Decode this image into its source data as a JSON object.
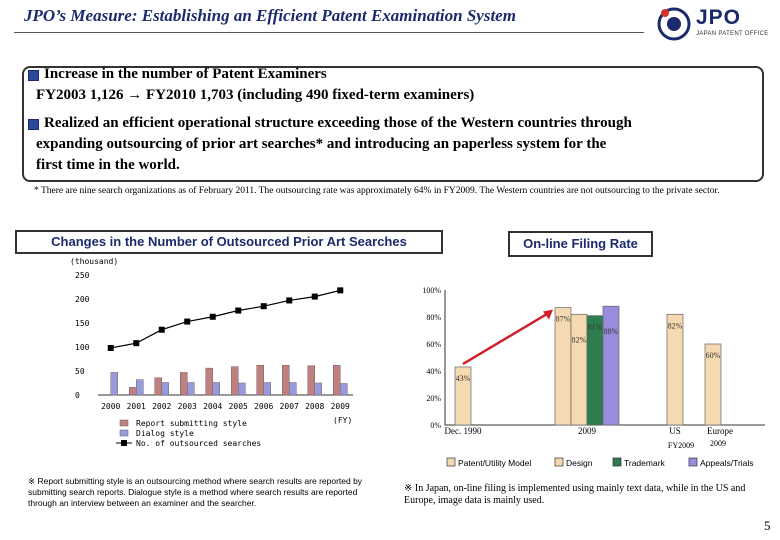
{
  "header": {
    "title": "JPO’s Measure: Establishing an Efficient Patent Examination System",
    "logo_text": "JPO",
    "logo_subtext": "JAPAN PATENT OFFICE"
  },
  "summary": {
    "point1_line1": "Increase in the number of Patent Examiners",
    "point1_line2": "FY2003  1,126  →  FY2010  1,703 (including 490 fixed-term examiners)",
    "point2_line1": "Realized an efficient operational structure exceeding those of the Western countries through",
    "point2_line2": "expanding outsourcing of prior art searches* and introducing an paperless system for the",
    "point2_line3": "first time in the world."
  },
  "footnote": "* There are nine search organizations as of February 2011. The outsourcing rate was approximately 64% in FY2009. The Western countries are not outsourcing to the private sector.",
  "chart_data": [
    {
      "type": "bar",
      "title": "Changes in the Number of Outsourced Prior Art Searches",
      "ylabel": "(thousand)",
      "xlabel": "(FY)",
      "ylim": [
        0,
        250
      ],
      "yticks": [
        "250",
        "200",
        "150",
        "100",
        "50",
        "0"
      ],
      "categories": [
        "2000",
        "2001",
        "2002",
        "2003",
        "2004",
        "2005",
        "2006",
        "2007",
        "2008",
        "2009"
      ],
      "series": [
        {
          "name": "Report submitting style",
          "kind": "bar",
          "color": "#c08080",
          "values": [
            0,
            16,
            36,
            47,
            56,
            59,
            62,
            62,
            61,
            62
          ]
        },
        {
          "name": "Dialog style",
          "kind": "bar",
          "color": "#9999dd",
          "values": [
            47,
            32,
            26,
            26,
            26,
            25,
            26,
            26,
            25,
            24
          ]
        },
        {
          "name": "No. of outsourced searches",
          "kind": "line",
          "color": "#000000",
          "values": [
            98,
            108,
            136,
            153,
            163,
            176,
            185,
            197,
            205,
            218
          ]
        }
      ]
    },
    {
      "type": "bar",
      "title": "On-line Filing Rate",
      "ylim": [
        0,
        100
      ],
      "yticks": [
        "100%",
        "80%",
        "60%",
        "40%",
        "20%",
        "0%"
      ],
      "groups": [
        {
          "label": "Dec. 1990",
          "bars": [
            {
              "series": "Patent/Utility Model",
              "value": 43,
              "label": "43%"
            }
          ]
        },
        {
          "label": "2009",
          "bars": [
            {
              "series": "Patent/Utility Model",
              "value": 87,
              "label": "87%"
            },
            {
              "series": "Design",
              "value": 82,
              "label": "82%"
            },
            {
              "series": "Trademark",
              "value": 81,
              "label": "81%"
            },
            {
              "series": "Appeals/Trials",
              "value": 88,
              "label": "88%"
            }
          ]
        },
        {
          "label": "US",
          "bars": [
            {
              "series": "Patent/Utility Model",
              "value": 82,
              "label": "82%"
            }
          ]
        },
        {
          "label": "Europe",
          "bars": [
            {
              "series": "Patent/Utility Model",
              "value": 60,
              "label": "60%"
            }
          ]
        }
      ],
      "group_sublabel": "FY2009",
      "europe_sublabel": "2009",
      "legend": [
        {
          "name": "Patent/Utility Model",
          "color": "#f5d9b0"
        },
        {
          "name": "Design",
          "color": "#f5d9b0"
        },
        {
          "name": "Trademark",
          "color": "#2e7d4f"
        },
        {
          "name": "Appeals/Trials",
          "color": "#9a8cdc"
        }
      ]
    }
  ],
  "notes": {
    "left": "※ Report submitting style is an outsourcing method where search results are reported by submitting search reports. Dialogue style is a method where search results are reported through an interview between an examiner and the searcher.",
    "right": "※ In Japan, on-line filing is implemented using mainly text data, while in the US and Europe, image data is mainly used."
  },
  "page_number": "5"
}
